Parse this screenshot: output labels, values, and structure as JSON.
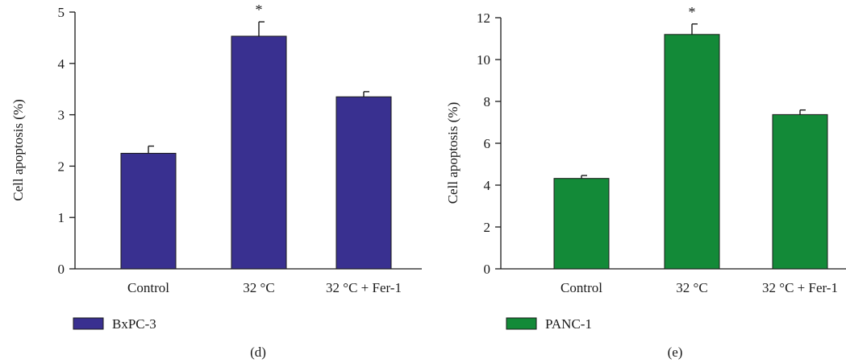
{
  "chart_data": [
    {
      "type": "bar",
      "panel_label": "(d)",
      "ylabel": "Cell apoptosis (%)",
      "ylim": [
        0,
        5
      ],
      "yticks": [
        0,
        1,
        2,
        3,
        4,
        5
      ],
      "categories": [
        "Control",
        "32 °C",
        "32 °C + Fer-1"
      ],
      "series": [
        {
          "name": "BxPC-3",
          "color": "#393090",
          "values": [
            2.25,
            4.53,
            3.35
          ],
          "errors": [
            0.14,
            0.28,
            0.1
          ]
        }
      ],
      "annotations": [
        "",
        "*",
        ""
      ],
      "legend_placement": "bottom-left"
    },
    {
      "type": "bar",
      "panel_label": "(e)",
      "ylabel": "Cell apoptosis (%)",
      "ylim": [
        0,
        12
      ],
      "yticks": [
        0,
        2,
        4,
        6,
        8,
        10,
        12
      ],
      "categories": [
        "Control",
        "32 °C",
        "32 °C + Fer-1"
      ],
      "series": [
        {
          "name": "PANC-1",
          "color": "#138A38",
          "values": [
            4.32,
            11.2,
            7.37
          ],
          "errors": [
            0.14,
            0.5,
            0.22
          ]
        }
      ],
      "annotations": [
        "",
        "*",
        ""
      ],
      "legend_placement": "bottom-left"
    }
  ]
}
